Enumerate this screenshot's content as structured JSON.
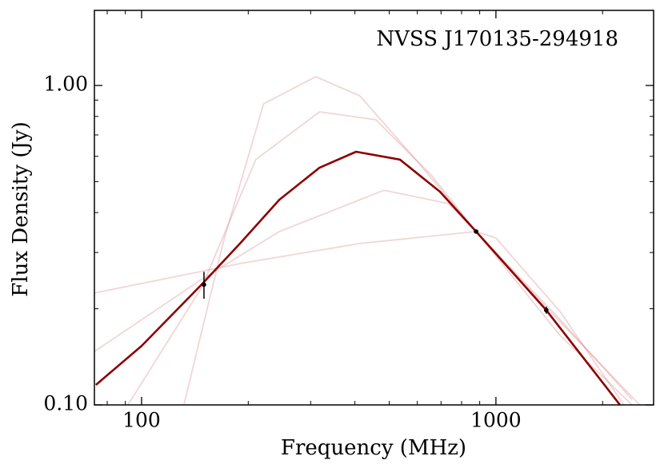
{
  "chart_data": {
    "type": "line",
    "annotation": "NVSS J170135-294918",
    "xlabel": "Frequency (MHz)",
    "ylabel": "Flux Density (Jy)",
    "xscale": "log",
    "yscale": "log",
    "xlim": [
      73.6,
      2786
    ],
    "ylim": [
      0.1,
      1.718
    ],
    "xticks": [
      100,
      1000
    ],
    "xticks_minor": [
      80,
      90,
      200,
      300,
      400,
      500,
      600,
      700,
      800,
      900,
      2000
    ],
    "yticks": [
      {
        "value": 0.1,
        "label": "0.10"
      },
      {
        "value": 1,
        "label": "1.00"
      }
    ],
    "yticks_minor": [
      0.2,
      0.3,
      0.4,
      0.5,
      0.6,
      0.7,
      0.8,
      0.9
    ],
    "series": [
      {
        "color": "#d98888",
        "x": [
          131.7,
          170.8,
          221,
          310,
          413,
          594,
          879,
          1517,
          2421
        ],
        "values": [
          0.1,
          0.329,
          0.876,
          1.065,
          0.928,
          0.586,
          0.349,
          0.165,
          0.1
        ]
      },
      {
        "color": "#d98888",
        "x": [
          73.6,
          189.6,
          413,
          879,
          1000,
          1517,
          2297
        ],
        "values": [
          0.224,
          0.277,
          0.32,
          0.349,
          0.333,
          0.196,
          0.1
        ]
      },
      {
        "color": "#d98888",
        "x": [
          91.5,
          147.6,
          210,
          318,
          458,
          659,
          879,
          1387,
          2547
        ],
        "values": [
          0.1,
          0.233,
          0.586,
          0.827,
          0.781,
          0.522,
          0.349,
          0.202,
          0.1
        ]
      },
      {
        "color": "#d98888",
        "x": [
          73.6,
          147.6,
          245,
          483,
          733,
          879,
          1517,
          2421
        ],
        "values": [
          0.147,
          0.247,
          0.349,
          0.47,
          0.427,
          0.349,
          0.185,
          0.104
        ]
      },
      {
        "color": "#8b0000",
        "x": [
          74.3,
          100,
          147.6,
          189.6,
          245,
          318,
          403,
          536,
          695,
          879,
          1387,
          2239
        ],
        "values": [
          0.1155,
          0.153,
          0.238,
          0.32,
          0.439,
          0.553,
          0.62,
          0.586,
          0.465,
          0.349,
          0.198,
          0.1
        ]
      }
    ],
    "points": {
      "color": "#000000",
      "x": [
        150,
        879,
        1387
      ],
      "values": [
        0.238,
        0.349,
        0.198
      ],
      "errors": [
        0.023,
        0.005,
        0.005
      ]
    }
  }
}
